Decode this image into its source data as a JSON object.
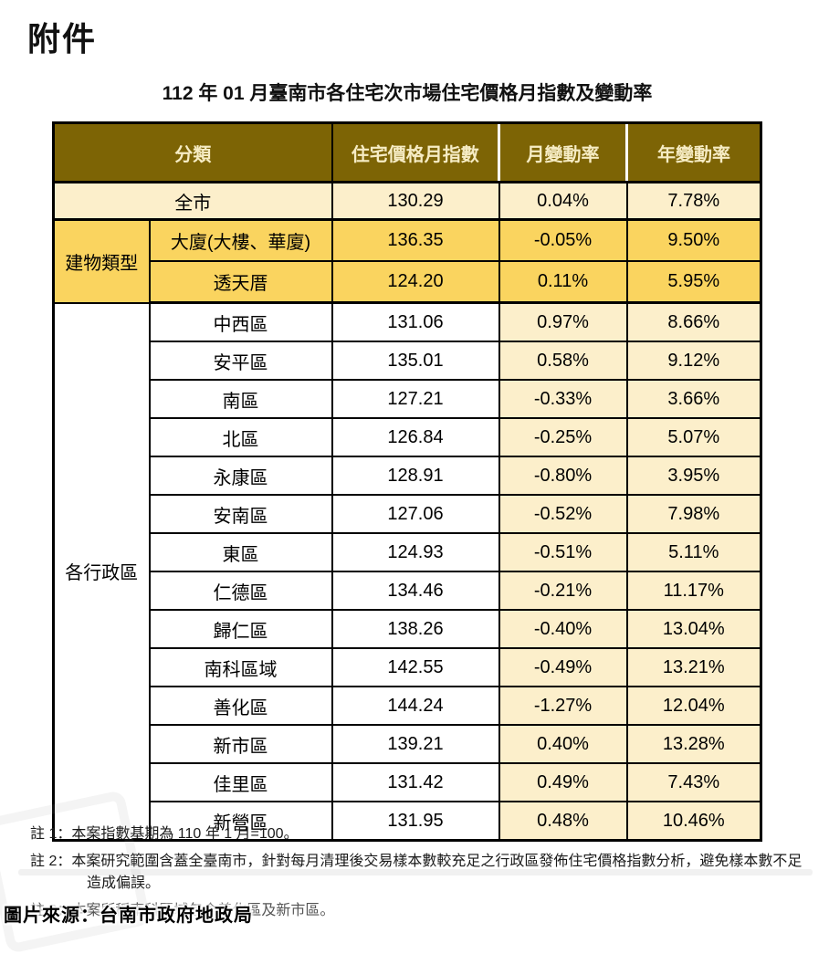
{
  "page": {
    "heading": "附件",
    "table_title": "112 年 01 月臺南市各住宅次市場住宅價格月指數及變動率",
    "source_caption": "圖片來源：台南市政府地政局"
  },
  "table": {
    "headers": {
      "category": "分類",
      "index": "住宅價格月指數",
      "month_change": "月變動率",
      "year_change": "年變動率"
    },
    "citywide": {
      "label": "全市",
      "index": "130.29",
      "month": "0.04%",
      "year": "7.78%"
    },
    "building_group_label": "建物類型",
    "building_rows": [
      {
        "name": "大廈(大樓、華廈)",
        "index": "136.35",
        "month": "-0.05%",
        "year": "9.50%"
      },
      {
        "name": "透天厝",
        "index": "124.20",
        "month": "0.11%",
        "year": "5.95%"
      }
    ],
    "district_group_label": "各行政區",
    "district_rows": [
      {
        "name": "中西區",
        "index": "131.06",
        "month": "0.97%",
        "year": "8.66%"
      },
      {
        "name": "安平區",
        "index": "135.01",
        "month": "0.58%",
        "year": "9.12%"
      },
      {
        "name": "南區",
        "index": "127.21",
        "month": "-0.33%",
        "year": "3.66%"
      },
      {
        "name": "北區",
        "index": "126.84",
        "month": "-0.25%",
        "year": "5.07%"
      },
      {
        "name": "永康區",
        "index": "128.91",
        "month": "-0.80%",
        "year": "3.95%"
      },
      {
        "name": "安南區",
        "index": "127.06",
        "month": "-0.52%",
        "year": "7.98%"
      },
      {
        "name": "東區",
        "index": "124.93",
        "month": "-0.51%",
        "year": "5.11%"
      },
      {
        "name": "仁德區",
        "index": "134.46",
        "month": "-0.21%",
        "year": "11.17%"
      },
      {
        "name": "歸仁區",
        "index": "138.26",
        "month": "-0.40%",
        "year": "13.04%"
      },
      {
        "name": "南科區域",
        "index": "142.55",
        "month": "-0.49%",
        "year": "13.21%"
      },
      {
        "name": "善化區",
        "index": "144.24",
        "month": "-1.27%",
        "year": "12.04%"
      },
      {
        "name": "新市區",
        "index": "139.21",
        "month": "0.40%",
        "year": "13.28%"
      },
      {
        "name": "佳里區",
        "index": "131.42",
        "month": "0.49%",
        "year": "7.43%"
      },
      {
        "name": "新營區",
        "index": "131.95",
        "month": "0.48%",
        "year": "10.46%"
      }
    ]
  },
  "notes": [
    "註 1：本案指數基期為 110 年 1 月=100。",
    "註 2：本案研究範圍含蓋全臺南市，針對每月清理後交易樣本數較充足之行政區發佈住宅價格指數分析，避免樣本數不足造成偏誤。",
    "註 3：本案所稱南科區域包含善化區及新市區。"
  ],
  "colors": {
    "header_bg": "#7D6405",
    "header_text": "#F6ECC4",
    "gold": "#FAD45F",
    "cream": "#FCEFCB",
    "border": "#000000"
  }
}
